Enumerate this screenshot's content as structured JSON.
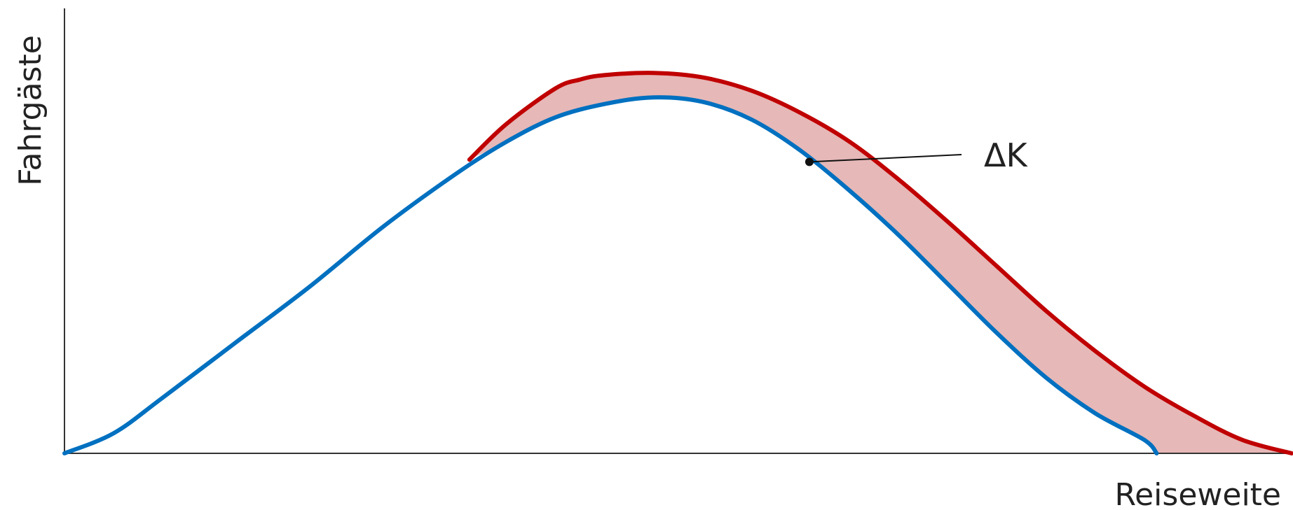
{
  "chart_data": {
    "type": "area",
    "xlabel": "Reiseweite",
    "ylabel": "Fahrgäste",
    "title": "",
    "grid": false,
    "xlim": [
      0,
      100
    ],
    "ylim": [
      0,
      100
    ],
    "series": [
      {
        "x": [
          0,
          4,
          8,
          14,
          20,
          26,
          32,
          36,
          40,
          44,
          48,
          52,
          56,
          60,
          64,
          68,
          72,
          76,
          80,
          84,
          88,
          89
        ],
        "values": [
          0,
          4.5,
          12.5,
          25,
          37.5,
          51,
          63,
          70,
          75.5,
          78.5,
          80,
          79,
          75,
          68,
          59,
          49,
          38,
          27,
          17,
          9,
          3,
          0
        ],
        "color": "#0070C0"
      },
      {
        "x": [
          33,
          36,
          40,
          42,
          44,
          48,
          52,
          56,
          60,
          64,
          68,
          72,
          76,
          80,
          84,
          88,
          92,
          96,
          100
        ],
        "values": [
          66,
          74,
          82,
          84,
          85,
          85.5,
          84.5,
          81.5,
          76.5,
          70,
          61.5,
          52,
          42,
          32,
          23,
          15,
          8.5,
          3,
          0
        ],
        "color": "#C00000"
      }
    ],
    "fill_between_color": "#E6B8B7",
    "annotations": [
      {
        "text": "ΔK",
        "x_pointer": 60.7,
        "y_pointer": 65.5
      }
    ]
  }
}
